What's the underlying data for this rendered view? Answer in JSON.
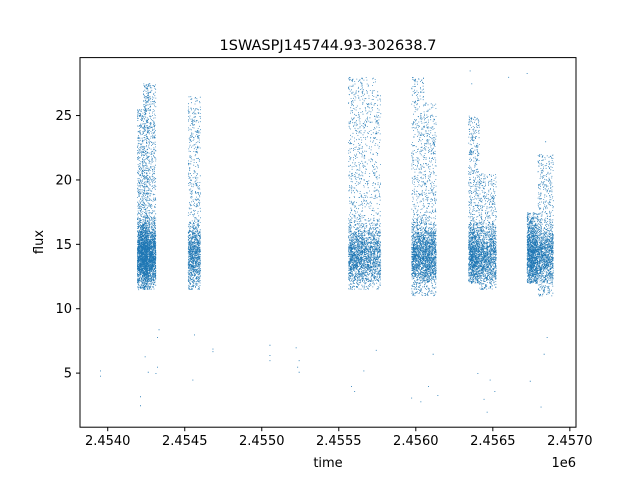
{
  "chart_data": {
    "type": "scatter",
    "title": "1SWASPJ145744.93-302638.7",
    "xlabel": "time",
    "ylabel": "flux",
    "x_offset_label": "1e6",
    "x_ticks": [
      2.454,
      2.4545,
      2.455,
      2.4555,
      2.456,
      2.4565,
      2.457
    ],
    "x_tick_labels": [
      "2.4540",
      "2.4545",
      "2.4550",
      "2.4555",
      "2.4560",
      "2.4565",
      "2.4570"
    ],
    "y_ticks": [
      5,
      10,
      15,
      20,
      25
    ],
    "y_tick_labels": [
      "5",
      "10",
      "15",
      "20",
      "25"
    ],
    "xlim": [
      2.45382,
      2.45704
    ],
    "ylim": [
      0.8,
      29.5
    ],
    "grid": false,
    "marker_color": "#1f77b4",
    "series": [
      {
        "segments": [
          {
            "x_range": [
              2.45419,
              2.45423
            ],
            "y_range": [
              11.5,
              25.5
            ]
          },
          {
            "x_range": [
              2.45423,
              2.45426
            ],
            "y_range": [
              11.5,
              27.5
            ]
          },
          {
            "x_range": [
              2.45426,
              2.45431
            ],
            "y_range": [
              11.5,
              27.5
            ]
          },
          {
            "x_range": [
              2.45452,
              2.4546
            ],
            "y_range": [
              11.5,
              26.5
            ]
          },
          {
            "x_range": [
              2.45556,
              2.45565
            ],
            "y_range": [
              11.5,
              28.0
            ]
          },
          {
            "x_range": [
              2.45565,
              2.45577
            ],
            "y_range": [
              11.5,
              28.0
            ]
          },
          {
            "x_range": [
              2.45597,
              2.45605
            ],
            "y_range": [
              11.0,
              28.0
            ]
          },
          {
            "x_range": [
              2.45605,
              2.45613
            ],
            "y_range": [
              11.0,
              26.0
            ]
          },
          {
            "x_range": [
              2.45634,
              2.45641
            ],
            "y_range": [
              12.0,
              25.0
            ]
          },
          {
            "x_range": [
              2.45641,
              2.45652
            ],
            "y_range": [
              11.5,
              20.5
            ]
          },
          {
            "x_range": [
              2.45672,
              2.45679
            ],
            "y_range": [
              12.0,
              17.5
            ]
          },
          {
            "x_range": [
              2.45679,
              2.45689
            ],
            "y_range": [
              11.0,
              22.0
            ]
          }
        ],
        "sparse_points": [
          [
            2.45395,
            5.2
          ],
          [
            2.45395,
            4.8
          ],
          [
            2.45421,
            3.2
          ],
          [
            2.45421,
            2.5
          ],
          [
            2.45424,
            6.3
          ],
          [
            2.45426,
            5.1
          ],
          [
            2.45431,
            5.0
          ],
          [
            2.45432,
            5.5
          ],
          [
            2.45432,
            7.8
          ],
          [
            2.45433,
            8.4
          ],
          [
            2.45455,
            4.5
          ],
          [
            2.45456,
            8.0
          ],
          [
            2.45468,
            6.7
          ],
          [
            2.45468,
            6.9
          ],
          [
            2.45505,
            6.0
          ],
          [
            2.45505,
            7.2
          ],
          [
            2.45505,
            6.4
          ],
          [
            2.45522,
            7.0
          ],
          [
            2.45523,
            5.5
          ],
          [
            2.45524,
            5.1
          ],
          [
            2.45524,
            6.0
          ],
          [
            2.45558,
            4.0
          ],
          [
            2.4556,
            3.6
          ],
          [
            2.45566,
            5.2
          ],
          [
            2.45574,
            6.8
          ],
          [
            2.45597,
            3.1
          ],
          [
            2.45603,
            2.8
          ],
          [
            2.45608,
            4.0
          ],
          [
            2.45611,
            6.5
          ],
          [
            2.45614,
            3.3
          ],
          [
            2.45635,
            28.5
          ],
          [
            2.45636,
            27.5
          ],
          [
            2.4564,
            5.0
          ],
          [
            2.45644,
            3.0
          ],
          [
            2.45646,
            2.0
          ],
          [
            2.45648,
            4.5
          ],
          [
            2.45651,
            3.6
          ],
          [
            2.4566,
            28.0
          ],
          [
            2.45672,
            28.3
          ],
          [
            2.45674,
            4.4
          ],
          [
            2.45681,
            2.4
          ],
          [
            2.45683,
            6.5
          ],
          [
            2.45685,
            7.8
          ],
          [
            2.45684,
            23.0
          ]
        ]
      }
    ]
  }
}
